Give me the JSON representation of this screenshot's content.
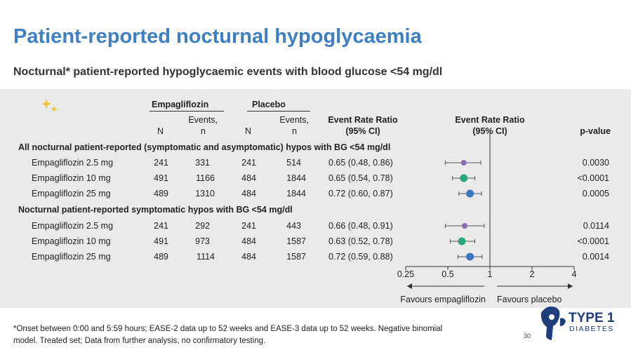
{
  "title": "Patient-reported nocturnal hypoglycaemia",
  "subtitle": "Nocturnal* patient-reported hypoglycaemic events with blood glucose <54 mg/dl",
  "table": {
    "group_empa": "Empagliflozin",
    "group_placebo": "Placebo",
    "col_n": "N",
    "col_events_line1": "Events,",
    "col_events_line2": "n",
    "col_err_line1": "Event Rate Ratio",
    "col_err_line2": "(95% CI)",
    "col_plot_line1": "Event Rate Ratio",
    "col_plot_line2": "(95% CI)",
    "col_p": "p-value",
    "sections": [
      {
        "heading": "All nocturnal patient-reported (symptomatic and asymptomatic) hypos with BG <54 mg/dl",
        "rows": [
          {
            "label": "Empagliflozin 2.5 mg",
            "n1": "241",
            "e1": "331",
            "n2": "241",
            "e2": "514",
            "err": "0.65 (0.48, 0.86)",
            "p": "0.0030"
          },
          {
            "label": "Empagliflozin 10 mg",
            "n1": "491",
            "e1": "1166",
            "n2": "484",
            "e2": "1844",
            "err": "0.65 (0.54, 0.78)",
            "p": "<0.0001"
          },
          {
            "label": "Empagliflozin 25 mg",
            "n1": "489",
            "e1": "1310",
            "n2": "484",
            "e2": "1844",
            "err": "0.72 (0.60, 0.87)",
            "p": "0.0005"
          }
        ]
      },
      {
        "heading": "Nocturnal patient-reported symptomatic hypos with BG <54 mg/dl",
        "rows": [
          {
            "label": "Empagliflozin 2.5 mg",
            "n1": "241",
            "e1": "292",
            "n2": "241",
            "e2": "443",
            "err": "0.66 (0.48, 0.91)",
            "p": "0.0114"
          },
          {
            "label": "Empagliflozin 10 mg",
            "n1": "491",
            "e1": "973",
            "n2": "484",
            "e2": "1587",
            "err": "0.63 (0.52, 0.78)",
            "p": "<0.0001"
          },
          {
            "label": "Empagliflozin 25 mg",
            "n1": "489",
            "e1": "1114",
            "n2": "484",
            "e2": "1587",
            "err": "0.72 (0.59, 0.88)",
            "p": "0.0014"
          }
        ]
      }
    ]
  },
  "chart_data": {
    "type": "scatter",
    "x_scale": "log",
    "xlim": [
      0.25,
      4
    ],
    "x_ticks": [
      "0.25",
      "0.5",
      "1",
      "2",
      "4"
    ],
    "x_tick_values": [
      0.25,
      0.5,
      1,
      2,
      4
    ],
    "reference_line": 1,
    "favours_left": "Favours empagliflozin",
    "favours_right": "Favours placebo",
    "points": [
      {
        "est": 0.65,
        "lo": 0.48,
        "hi": 0.86,
        "color": "#8e6bb1"
      },
      {
        "est": 0.65,
        "lo": 0.54,
        "hi": 0.78,
        "color": "#2aa878"
      },
      {
        "est": 0.72,
        "lo": 0.6,
        "hi": 0.87,
        "color": "#3a76c4"
      },
      {
        "est": 0.66,
        "lo": 0.48,
        "hi": 0.91,
        "color": "#8e6bb1"
      },
      {
        "est": 0.63,
        "lo": 0.52,
        "hi": 0.78,
        "color": "#2aa878"
      },
      {
        "est": 0.72,
        "lo": 0.59,
        "hi": 0.88,
        "color": "#3a76c4"
      }
    ]
  },
  "footnote_line1": "*Onset between 0:00 and 5:59 hours; EASE-2 data up to 52 weeks and EASE-3 data up to 52 weeks. Negative binomial",
  "footnote_line2": "model. Treated set; Data from further analysis, no confirmatory testing.",
  "page_number": "30",
  "logo": {
    "line1": "TYPE 1",
    "line2": "DIABETES",
    "color": "#1f3d7a"
  }
}
